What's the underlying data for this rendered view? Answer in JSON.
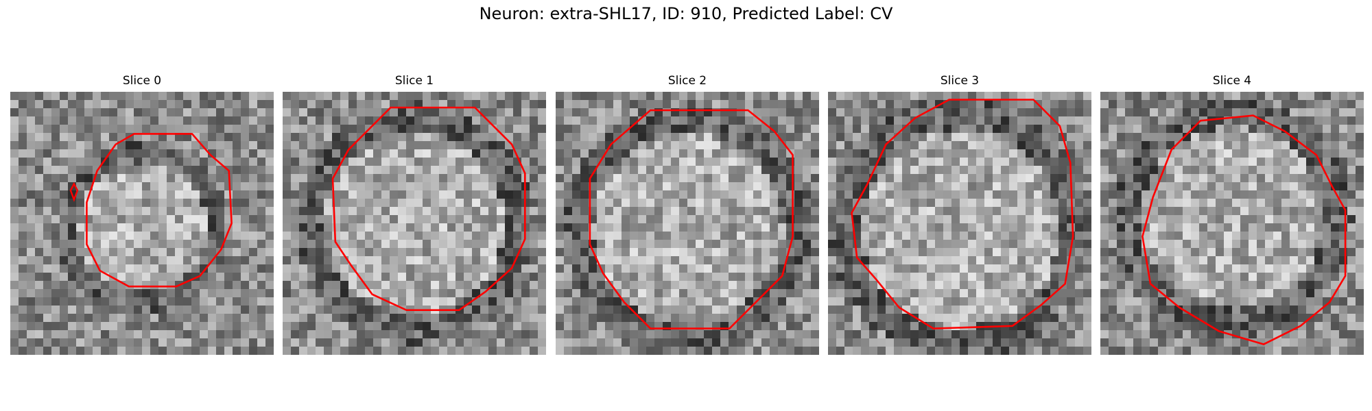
{
  "figure": {
    "title": "Neuron: extra-SHL17, ID: 910, Predicted Label: CV"
  },
  "colors": {
    "contour": "#ff0000",
    "background": "#ffffff"
  },
  "slices": [
    {
      "title": "Slice 0"
    },
    {
      "title": "Slice 1"
    },
    {
      "title": "Slice 2"
    },
    {
      "title": "Slice 3"
    },
    {
      "title": "Slice 4"
    }
  ]
}
